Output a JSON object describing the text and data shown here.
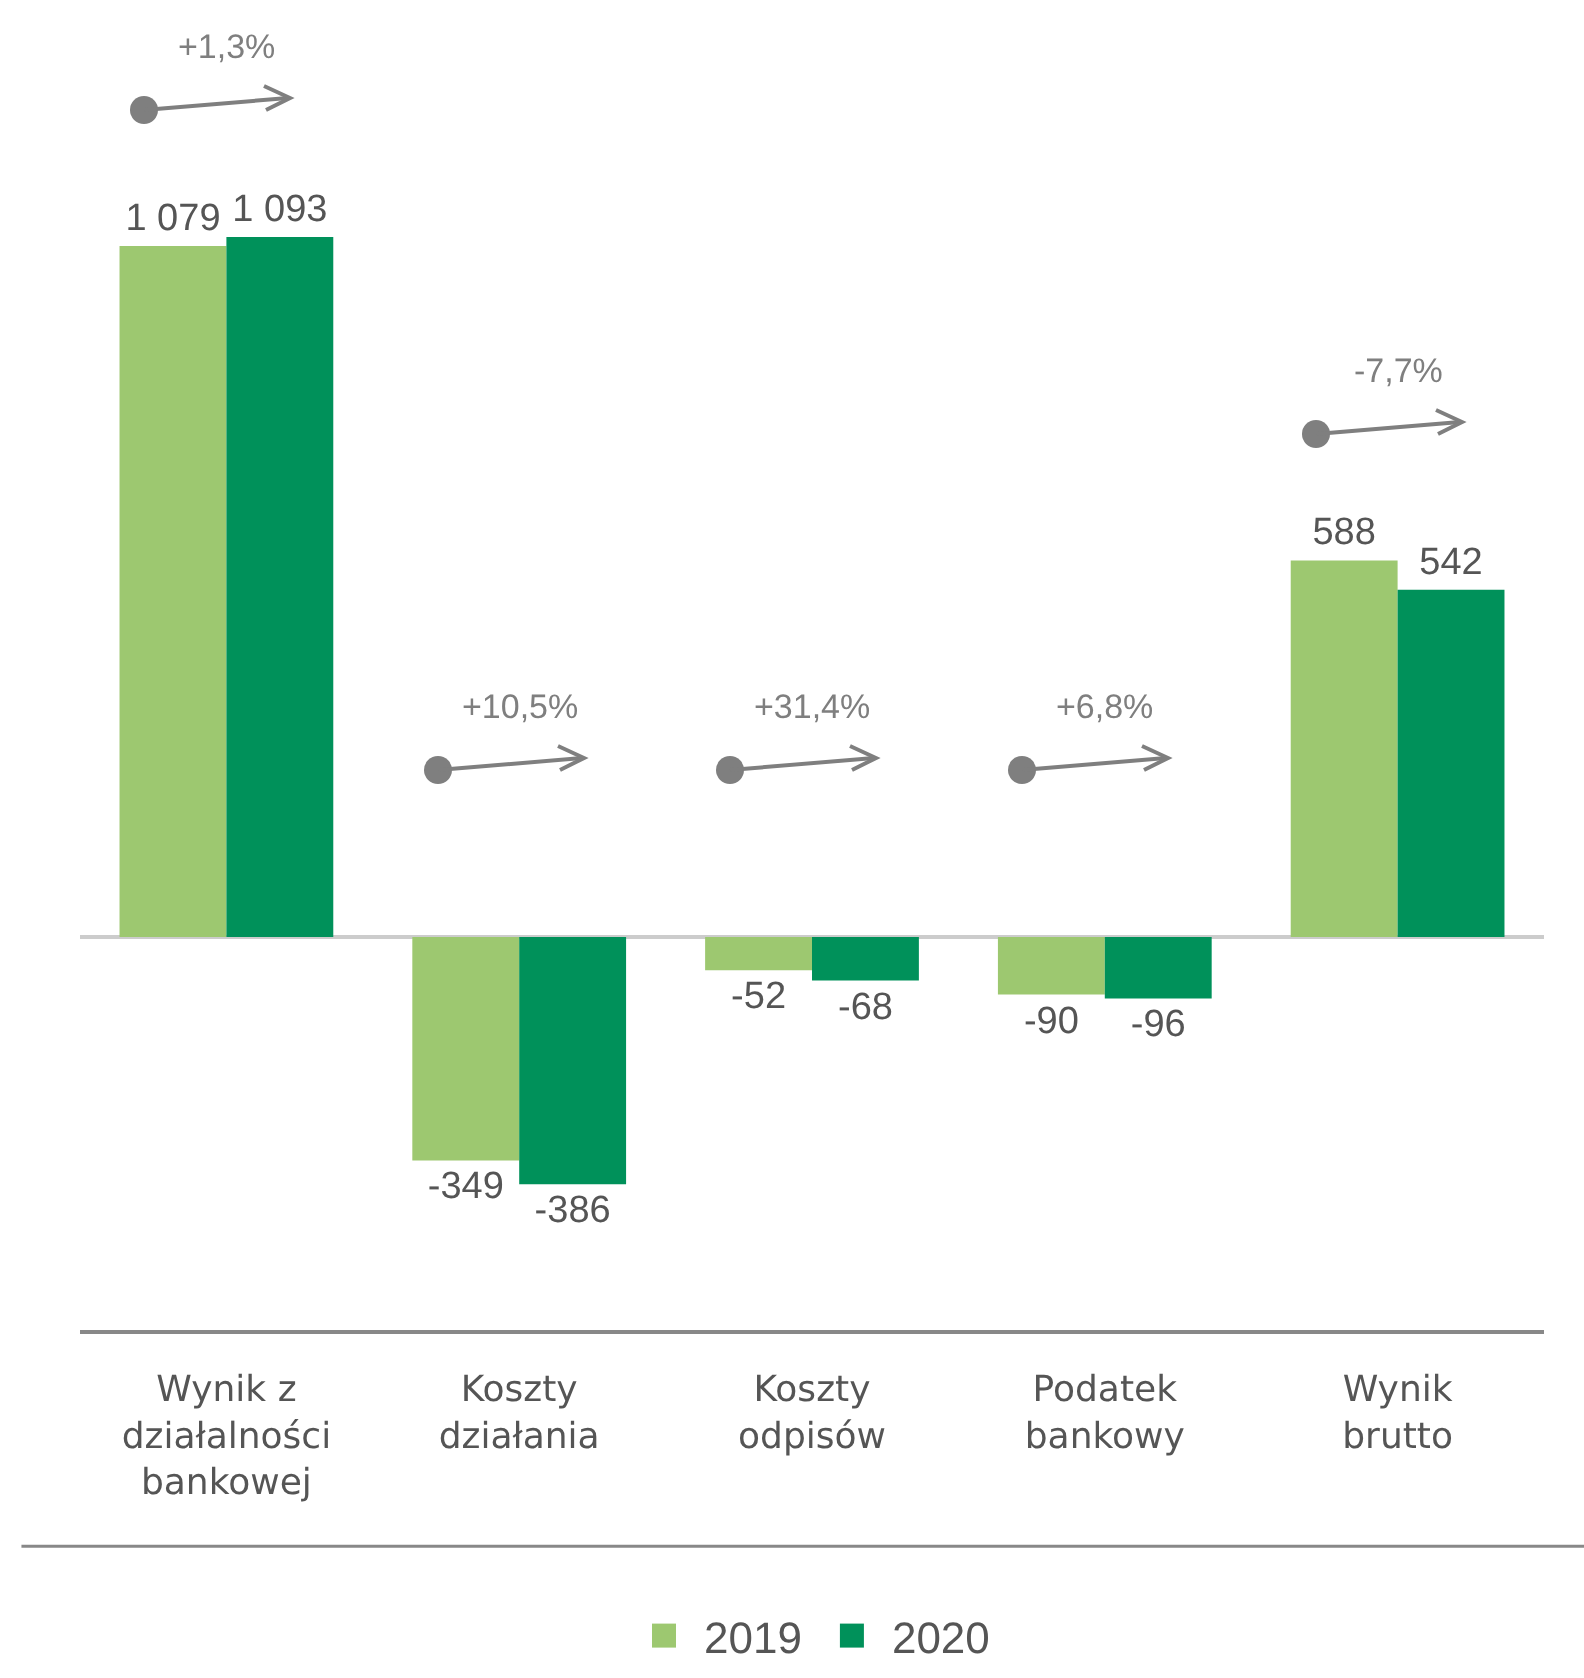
{
  "chart_data": {
    "type": "bar",
    "categories": [
      "Wynik z działalności bankowej",
      "Koszty działania",
      "Koszty odpisów",
      "Podatek bankowy",
      "Wynik brutto"
    ],
    "series": [
      {
        "name": "2019",
        "color": "#9dc870",
        "values": [
          1079,
          -349,
          -52,
          -90,
          588
        ],
        "value_labels": [
          "1 079",
          "-349",
          "-52",
          "-90",
          "588"
        ]
      },
      {
        "name": "2020",
        "color": "#00915a",
        "values": [
          1093,
          -386,
          -68,
          -96,
          542
        ],
        "value_labels": [
          "1 093",
          "-386",
          "-68",
          "-96",
          "542"
        ]
      }
    ],
    "annotations": [
      "+1,3%",
      "+10,5%",
      "+31,4%",
      "+6,8%",
      "-7,7%"
    ],
    "legend": "bottom",
    "grid": false
  }
}
